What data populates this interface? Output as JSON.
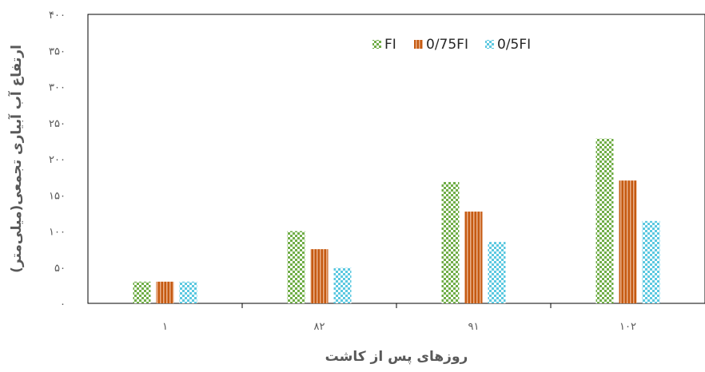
{
  "chart_data": {
    "type": "bar",
    "categories": [
      "۱",
      "۸۲",
      "۹۱",
      "۱۰۲"
    ],
    "series": [
      {
        "name": "FI",
        "values": [
          30,
          100,
          168,
          228
        ]
      },
      {
        "name": "0/75FI",
        "values": [
          30,
          75,
          127,
          170
        ]
      },
      {
        "name": "0/5FI",
        "values": [
          30,
          49,
          85,
          114
        ]
      }
    ],
    "colors": [
      "#70AD47",
      "#C55A11",
      "#5BC8E0"
    ],
    "ylim": [
      0,
      400
    ],
    "yticks": [
      0,
      50,
      100,
      150,
      200,
      250,
      300,
      350,
      400
    ],
    "ytick_labels": [
      "۰",
      "۵۰",
      "۱۰۰",
      "۱۵۰",
      "۲۰۰",
      "۲۵۰",
      "۳۰۰",
      "۳۵۰",
      "۴۰۰"
    ],
    "xlabel": "روزهای پس از کاشت",
    "ylabel": "ارتفاع آب آبیاری تجمعی(میلی‌متر)",
    "legend_position": "top-right",
    "grid": false
  }
}
